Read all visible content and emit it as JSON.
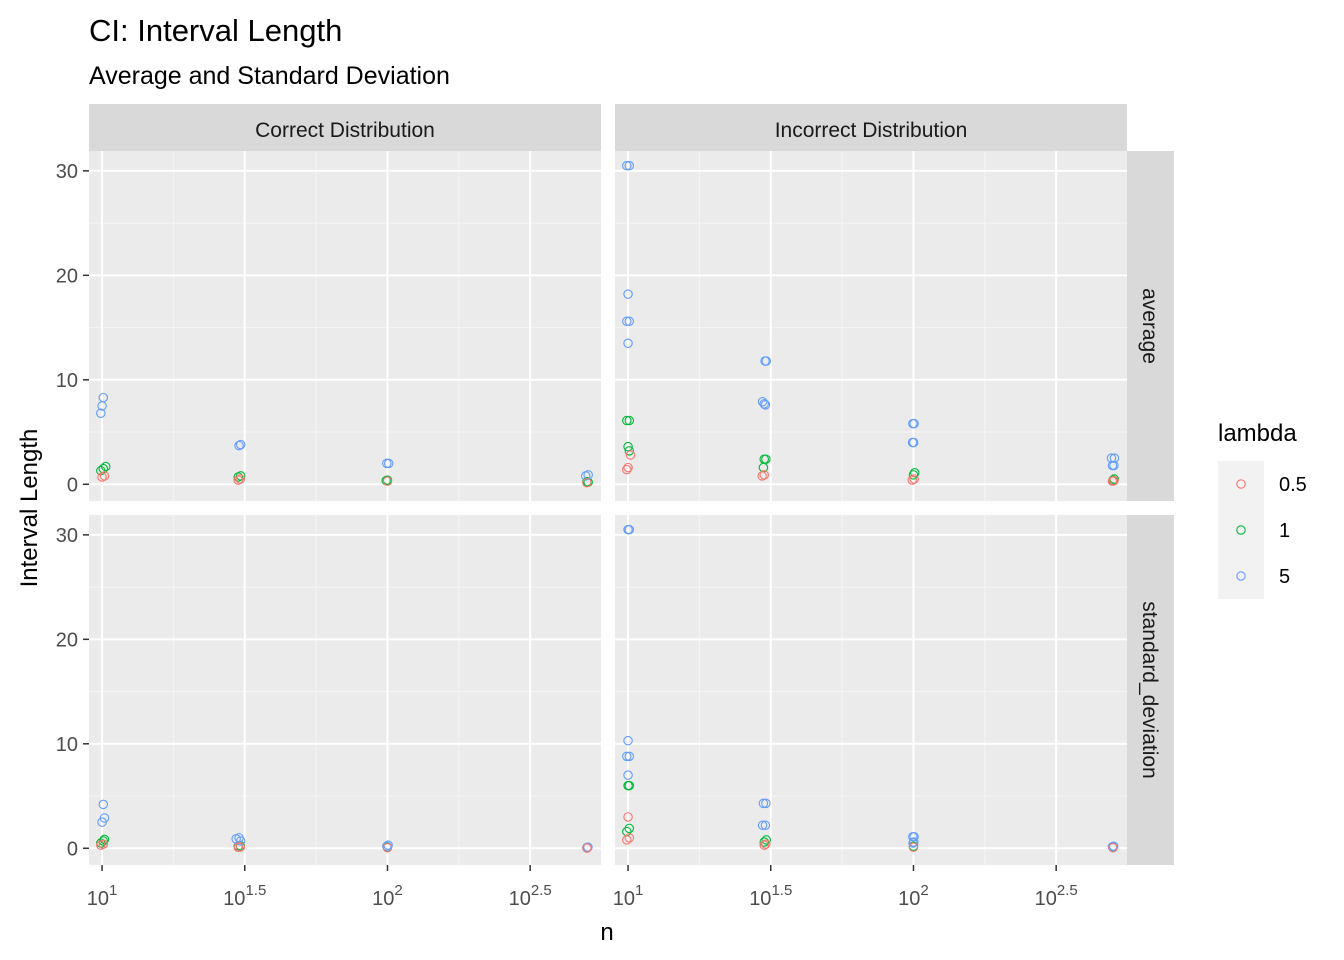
{
  "chart_data": {
    "type": "scatter",
    "title": "CI: Interval Length",
    "subtitle": "Average and Standard Deviation",
    "xlabel": "n",
    "ylabel": "Interval Length",
    "x_scale": "log10",
    "xlim": [
      9,
      560
    ],
    "ylim": [
      -1.6,
      31.9
    ],
    "x_ticks": [
      {
        "value": 10,
        "base": "10",
        "exp": "1"
      },
      {
        "value": 31.62,
        "base": "10",
        "exp": "1.5"
      },
      {
        "value": 100,
        "base": "10",
        "exp": "2"
      },
      {
        "value": 316.23,
        "base": "10",
        "exp": "2.5"
      }
    ],
    "y_ticks": [
      0,
      10,
      20,
      30
    ],
    "grid": true,
    "legend": {
      "title": "lambda",
      "position": "right",
      "entries": [
        "0.5",
        "1",
        "5"
      ]
    },
    "series_colors": {
      "0.5": "#F8766D",
      "1": "#00BA38",
      "5": "#619CFF"
    },
    "facets": {
      "columns": [
        "Correct Distribution",
        "Incorrect Distribution"
      ],
      "rows": [
        "average",
        "standard_deviation"
      ]
    },
    "panels": [
      {
        "column": "Correct Distribution",
        "row": "average",
        "points": {
          "0.5": [
            [
              10,
              0.7
            ],
            [
              10.2,
              0.8
            ],
            [
              30,
              0.4
            ],
            [
              30.5,
              0.5
            ],
            [
              100,
              0.3
            ],
            [
              500,
              0.15
            ]
          ],
          "1": [
            [
              9.9,
              1.3
            ],
            [
              10.1,
              1.5
            ],
            [
              10.3,
              1.7
            ],
            [
              30,
              0.7
            ],
            [
              30.6,
              0.8
            ],
            [
              100,
              0.4
            ],
            [
              99,
              0.35
            ],
            [
              500,
              0.25
            ],
            [
              505,
              0.2
            ]
          ],
          "5": [
            [
              9.9,
              6.8
            ],
            [
              10,
              7.5
            ],
            [
              10.1,
              8.3
            ],
            [
              30.2,
              3.7
            ],
            [
              30.6,
              3.8
            ],
            [
              99.5,
              2.0
            ],
            [
              101,
              2.0
            ],
            [
              495,
              0.8
            ],
            [
              505,
              0.9
            ]
          ]
        }
      },
      {
        "column": "Incorrect Distribution",
        "row": "average",
        "points": {
          "0.5": [
            [
              9.9,
              1.4
            ],
            [
              10,
              1.6
            ],
            [
              10.2,
              2.8
            ],
            [
              29.5,
              0.8
            ],
            [
              30,
              0.9
            ],
            [
              99,
              0.4
            ],
            [
              100.5,
              0.5
            ],
            [
              498,
              0.3
            ],
            [
              504,
              0.35
            ]
          ],
          "1": [
            [
              9.9,
              6.1
            ],
            [
              10.1,
              6.1
            ],
            [
              10,
              3.6
            ],
            [
              10.1,
              3.2
            ],
            [
              30,
              2.4
            ],
            [
              30.4,
              2.4
            ],
            [
              29.8,
              1.6
            ],
            [
              100,
              0.9
            ],
            [
              101,
              1.1
            ],
            [
              500,
              0.4
            ],
            [
              505,
              0.5
            ]
          ],
          "5": [
            [
              9.9,
              30.5
            ],
            [
              10.1,
              30.5
            ],
            [
              10,
              18.2
            ],
            [
              9.9,
              15.6
            ],
            [
              10.1,
              15.6
            ],
            [
              10,
              13.5
            ],
            [
              30.2,
              11.8
            ],
            [
              30.5,
              11.8
            ],
            [
              29.6,
              7.9
            ],
            [
              30.3,
              7.6
            ],
            [
              30,
              7.7
            ],
            [
              99.5,
              5.8
            ],
            [
              100.5,
              5.8
            ],
            [
              99.3,
              4.0
            ],
            [
              100.2,
              4.0
            ],
            [
              494,
              2.5
            ],
            [
              506,
              2.5
            ],
            [
              498,
              1.8
            ],
            [
              504,
              1.8
            ]
          ]
        }
      },
      {
        "column": "Correct Distribution",
        "row": "standard_deviation",
        "points": {
          "0.5": [
            [
              9.9,
              0.3
            ],
            [
              10.1,
              0.4
            ],
            [
              30,
              0.1
            ],
            [
              30.5,
              0.12
            ],
            [
              100,
              0.05
            ],
            [
              500,
              0.02
            ]
          ],
          "1": [
            [
              9.9,
              0.5
            ],
            [
              10.1,
              0.7
            ],
            [
              10.2,
              0.85
            ],
            [
              30,
              0.2
            ],
            [
              30.5,
              0.25
            ],
            [
              100,
              0.1
            ],
            [
              500,
              0.04
            ]
          ],
          "5": [
            [
              10,
              2.5
            ],
            [
              10.2,
              2.9
            ],
            [
              10.1,
              4.2
            ],
            [
              29.5,
              0.9
            ],
            [
              30.2,
              1.0
            ],
            [
              30.6,
              0.7
            ],
            [
              99.5,
              0.2
            ],
            [
              100.5,
              0.3
            ],
            [
              500,
              0.08
            ],
            [
              504,
              0.1
            ]
          ]
        }
      },
      {
        "column": "Incorrect Distribution",
        "row": "standard_deviation",
        "points": {
          "0.5": [
            [
              9.9,
              0.8
            ],
            [
              10.1,
              1.0
            ],
            [
              10,
              3.0
            ],
            [
              30,
              0.3
            ],
            [
              30.4,
              0.4
            ],
            [
              100,
              0.1
            ],
            [
              500,
              0.05
            ]
          ],
          "1": [
            [
              9.9,
              1.6
            ],
            [
              10.1,
              1.9
            ],
            [
              10,
              6.0
            ],
            [
              10.1,
              6.0
            ],
            [
              30,
              0.6
            ],
            [
              30.5,
              0.8
            ],
            [
              100,
              0.2
            ],
            [
              500,
              0.08
            ]
          ],
          "5": [
            [
              10,
              30.5
            ],
            [
              10.1,
              30.5
            ],
            [
              10,
              10.3
            ],
            [
              9.9,
              8.8
            ],
            [
              10.1,
              8.8
            ],
            [
              10,
              7.0
            ],
            [
              29.8,
              4.3
            ],
            [
              30.4,
              4.3
            ],
            [
              29.6,
              2.2
            ],
            [
              30.3,
              2.2
            ],
            [
              99.5,
              1.1
            ],
            [
              100.5,
              1.1
            ],
            [
              99.7,
              0.5
            ],
            [
              100.3,
              0.6
            ],
            [
              498,
              0.15
            ],
            [
              503,
              0.2
            ]
          ]
        }
      }
    ]
  }
}
